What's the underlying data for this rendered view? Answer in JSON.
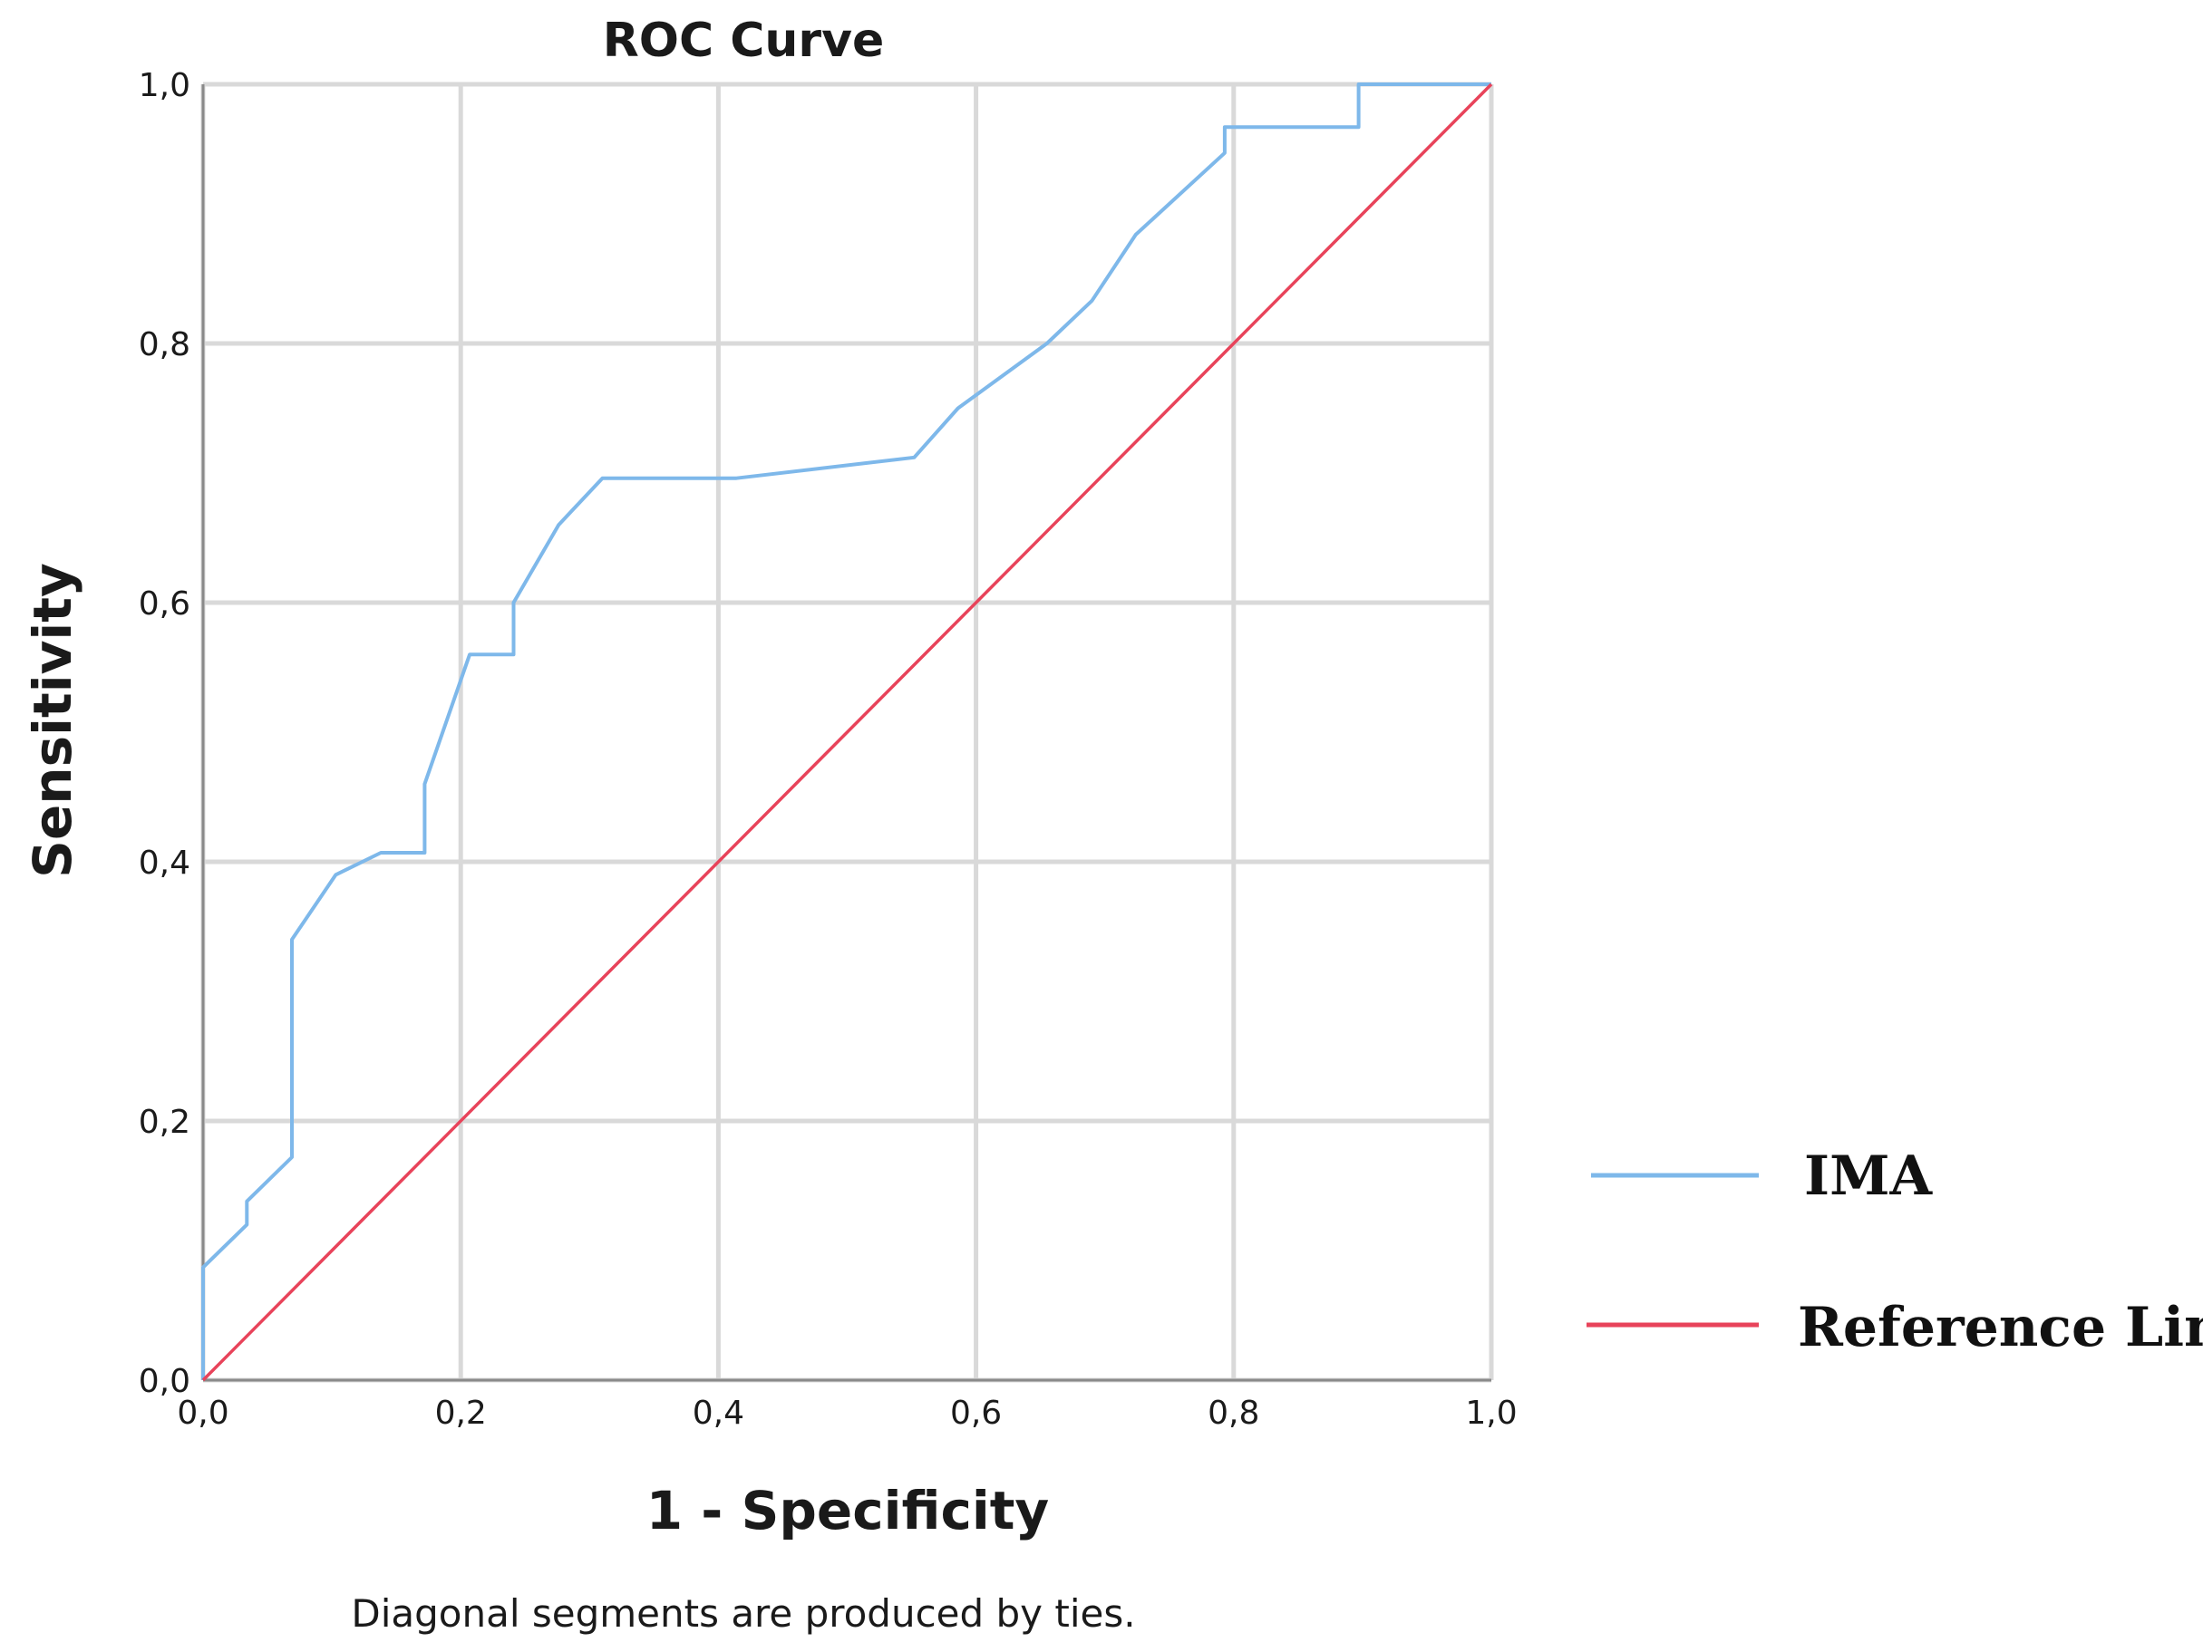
{
  "chart_data": {
    "type": "line",
    "title": "ROC Curve",
    "xlabel": "1 - Specificity",
    "ylabel": "Sensitivity",
    "xlim": [
      0,
      1
    ],
    "ylim": [
      0,
      1
    ],
    "grid": true,
    "legend_position": "right",
    "xticks": [
      "0,0",
      "0,2",
      "0,4",
      "0,6",
      "0,8",
      "1,0"
    ],
    "yticks": [
      "0,0",
      "0,2",
      "0,4",
      "0,6",
      "0,8",
      "1,0"
    ],
    "footnote": "Diagonal segments are produced by ties.",
    "colors": {
      "ima": "#7eb8ea",
      "reference": "#e8435a",
      "grid": "#d9d9d9",
      "axis": "#8a8a8a"
    },
    "series": [
      {
        "name": "IMA",
        "x": [
          0.0,
          0.0,
          0.034,
          0.034,
          0.069,
          0.069,
          0.103,
          0.138,
          0.172,
          0.172,
          0.207,
          0.241,
          0.241,
          0.276,
          0.31,
          0.414,
          0.552,
          0.586,
          0.655,
          0.69,
          0.724,
          0.793,
          0.793,
          0.897,
          0.897,
          1.0
        ],
        "y": [
          0.0,
          0.087,
          0.12,
          0.138,
          0.172,
          0.34,
          0.39,
          0.407,
          0.407,
          0.46,
          0.56,
          0.56,
          0.6,
          0.66,
          0.696,
          0.696,
          0.712,
          0.75,
          0.8,
          0.833,
          0.884,
          0.947,
          0.967,
          0.967,
          1.0,
          1.0
        ]
      },
      {
        "name": "Reference Line",
        "x": [
          0.0,
          1.0
        ],
        "y": [
          0.0,
          1.0
        ]
      }
    ]
  }
}
